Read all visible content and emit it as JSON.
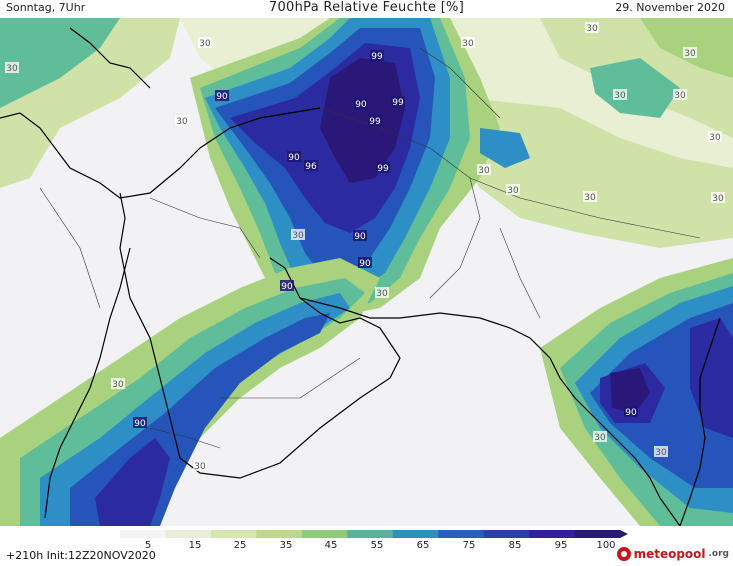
{
  "header": {
    "left": "Sonntag, 7Uhr",
    "title": "700hPa Relative Feuchte [%]",
    "right": "29. November 2020"
  },
  "footer": {
    "run_info": "+210h  Init:12Z20NOV2020",
    "logo_text": "meteopool",
    "logo_tld": ".org"
  },
  "legend": {
    "ticks": [
      "5",
      "15",
      "25",
      "35",
      "45",
      "55",
      "65",
      "75",
      "85",
      "95",
      "100"
    ],
    "colors": [
      "#f4f4f5",
      "#e8efd8",
      "#d6e6b0",
      "#bcd98a",
      "#8fc97a",
      "#56b49a",
      "#2e8fc0",
      "#2462b8",
      "#2b3fa8",
      "#30209a",
      "#2a1878"
    ]
  },
  "colors": {
    "dry": "#f2f2f4",
    "low": "#e9efd3",
    "mid_low": "#cfe2a8",
    "mid": "#a9d27f",
    "mid_high": "#5fbd9a",
    "high": "#2d8fc5",
    "very_high": "#2555b8",
    "saturated": "#2b2aa0",
    "max": "#2a1878",
    "coast": "#000000",
    "border": "#333333"
  },
  "map_labels": [
    {
      "text": "30",
      "value": 30
    },
    {
      "text": "30",
      "value": 30
    },
    {
      "text": "30",
      "value": 30
    },
    {
      "text": "99",
      "value": 99
    },
    {
      "text": "30",
      "value": 30
    },
    {
      "text": "30",
      "value": 30
    },
    {
      "text": "30",
      "value": 30
    },
    {
      "text": "90",
      "value": 90
    },
    {
      "text": "99",
      "value": 99
    },
    {
      "text": "90",
      "value": 90
    },
    {
      "text": "30",
      "value": 30
    },
    {
      "text": "30",
      "value": 30
    },
    {
      "text": "99",
      "value": 99
    },
    {
      "text": "90",
      "value": 90
    },
    {
      "text": "96",
      "value": 96
    },
    {
      "text": "99",
      "value": 99
    },
    {
      "text": "30",
      "value": 30
    },
    {
      "text": "30",
      "value": 30
    },
    {
      "text": "30",
      "value": 30
    },
    {
      "text": "90",
      "value": 90
    },
    {
      "text": "30",
      "value": 30
    },
    {
      "text": "90",
      "value": 90
    },
    {
      "text": "90",
      "value": 90
    },
    {
      "text": "30",
      "value": 30
    },
    {
      "text": "30",
      "value": 30
    },
    {
      "text": "90",
      "value": 90
    },
    {
      "text": "30",
      "value": 30
    },
    {
      "text": "30",
      "value": 30
    },
    {
      "text": "30",
      "value": 30
    },
    {
      "text": "90",
      "value": 90
    },
    {
      "text": "30",
      "value": 30
    },
    {
      "text": "30",
      "value": 30
    }
  ]
}
